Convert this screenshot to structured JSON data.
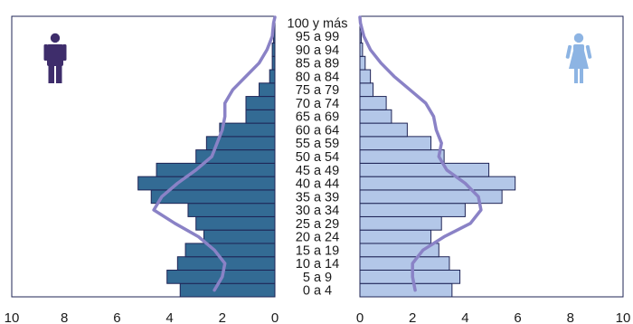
{
  "chart_data": {
    "type": "bar",
    "subtype": "population-pyramid",
    "title": "",
    "xlabel": "",
    "ylabel": "",
    "categories": [
      "0 a 4",
      "5 a 9",
      "10 a 14",
      "15 a 19",
      "20 a 24",
      "25 a 29",
      "30 a 34",
      "35 a 39",
      "40 a 44",
      "45 a 49",
      "50 a 54",
      "55 a 59",
      "60 a 64",
      "65 a 69",
      "70 a 74",
      "75 a 79",
      "80 a 84",
      "85 a 89",
      "90 a 94",
      "95 a 99",
      "100 y más"
    ],
    "xlim": [
      0,
      10
    ],
    "xticks": [
      0,
      2,
      4,
      6,
      8,
      10
    ],
    "xtick_labels": [
      "0",
      "2",
      "4",
      "6",
      "8",
      "10"
    ],
    "grid": false,
    "legend": "none",
    "series": [
      {
        "side": "left",
        "icon": "male-icon",
        "color": "#336b94",
        "values": [
          3.6,
          4.1,
          3.7,
          3.4,
          2.7,
          3.0,
          3.3,
          4.7,
          5.2,
          4.5,
          3.0,
          2.6,
          2.1,
          1.1,
          1.1,
          0.6,
          0.2,
          0.1,
          0.1,
          0.05,
          0.02
        ],
        "reference_line": [
          2.3,
          2.0,
          1.9,
          2.3,
          2.9,
          3.8,
          4.6,
          4.3,
          3.7,
          3.0,
          2.4,
          2.2,
          2.0,
          1.9,
          1.9,
          1.6,
          1.1,
          0.6,
          0.3,
          0.1,
          0.05
        ]
      },
      {
        "side": "right",
        "icon": "female-icon",
        "color": "#b3c7e8",
        "values": [
          3.5,
          3.8,
          3.4,
          3.0,
          2.7,
          3.1,
          4.0,
          5.4,
          5.9,
          4.9,
          3.2,
          2.7,
          1.8,
          1.2,
          1.0,
          0.5,
          0.4,
          0.2,
          0.1,
          0.05,
          0.02
        ],
        "reference_line": [
          2.1,
          2.0,
          2.0,
          2.4,
          3.2,
          4.2,
          4.6,
          4.5,
          4.0,
          3.3,
          3.0,
          3.1,
          2.9,
          2.8,
          2.5,
          1.9,
          1.3,
          0.8,
          0.4,
          0.15,
          0.02
        ]
      }
    ],
    "line_color": "#8a82c6",
    "bar_edge_color": "#1f2456",
    "axis_color": "#1f2456"
  }
}
